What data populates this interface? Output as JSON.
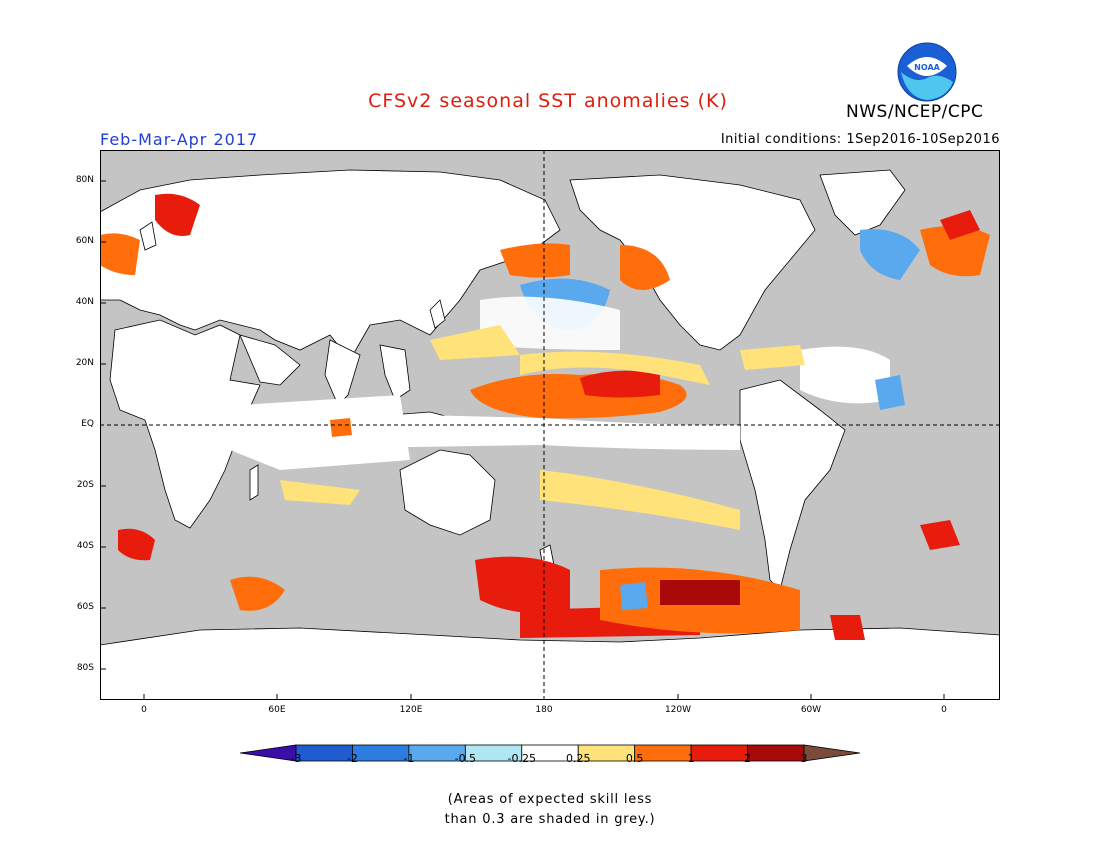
{
  "title": "CFSv2 seasonal SST anomalies (K)",
  "agency": "NWS/NCEP/CPC",
  "logo_text": "NOAA",
  "period": "Feb-Mar-Apr 2017",
  "initial_conditions": "Initial conditions: 1Sep2016-10Sep2016",
  "lat_labels": [
    "80N",
    "60N",
    "40N",
    "20N",
    "EQ",
    "20S",
    "40S",
    "60S",
    "80S"
  ],
  "lon_labels": [
    "0",
    "60E",
    "120E",
    "180",
    "120W",
    "60W",
    "0"
  ],
  "colorbar": {
    "labels": [
      "-3",
      "-2",
      "-1",
      "-0.5",
      "-0.25",
      "0.25",
      "0.5",
      "1",
      "2",
      "3"
    ],
    "colors": [
      "#3a0fa8",
      "#1f5ccf",
      "#2d7de0",
      "#5aa8ee",
      "#aee6f2",
      "#ffffff",
      "#ffe27a",
      "#ff6e0a",
      "#e81c0c",
      "#a80a0a",
      "#7a4a3a"
    ]
  },
  "note_line1": "(Areas of expected skill less",
  "note_line2": "than 0.3 are shaded in grey.)",
  "colors": {
    "ocean_grey": "#c4c4c4",
    "land": "#ffffff",
    "title_red": "#e01c0c",
    "period_blue": "#1f3fd6"
  }
}
